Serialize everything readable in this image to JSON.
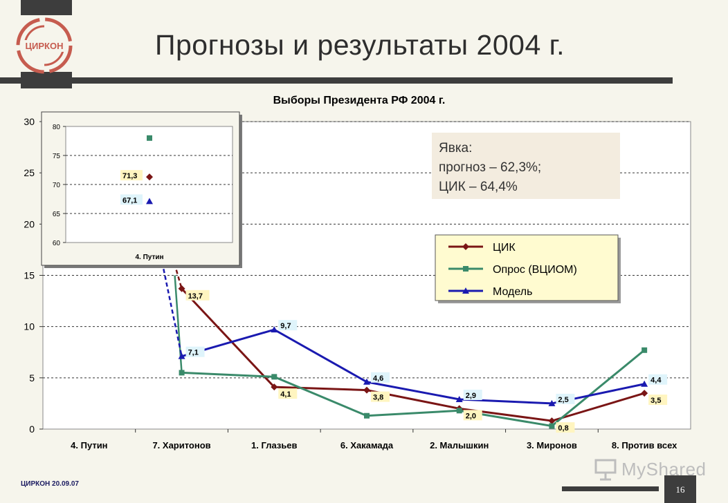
{
  "slide": {
    "logo_text": "ЦИРКОН",
    "title": "Прогнозы и результаты 2004 г.",
    "footer": "ЦИРКОН 20.09.07",
    "page_number": "16",
    "watermark": "MyShared"
  },
  "colors": {
    "cik": "#7a1515",
    "survey": "#3a8a6a",
    "model": "#1a1ab0",
    "logo": "#c65c4f",
    "turnout_bg": "#f3ecdf",
    "legend_bg": "#fffbd0"
  },
  "chart_data": {
    "type": "line",
    "title": "Выборы Президента РФ 2004 г.",
    "xlabel": "",
    "ylabel": "",
    "ylim": [
      0,
      30
    ],
    "yticks": [
      "0",
      "5",
      "10",
      "15",
      "20",
      "25",
      "30"
    ],
    "grid": true,
    "legend_placement": "right",
    "categories": [
      "4. Путин",
      "7. Харитонов",
      "1. Глазьев",
      "6. Хакамада",
      "2. Малышкин",
      "3. Миронов",
      "8. Против всех"
    ],
    "series": [
      {
        "name": "ЦИК",
        "marker": "diamond",
        "values": [
          null,
          13.7,
          4.1,
          3.8,
          2.0,
          0.8,
          3.5
        ],
        "labels": [
          null,
          "13,7",
          "4,1",
          "3,8",
          "2,0",
          "0,8",
          "3,5"
        ]
      },
      {
        "name": "Опрос (ВЦИОМ)",
        "marker": "square",
        "values": [
          null,
          5.5,
          5.1,
          1.3,
          1.8,
          0.3,
          7.7
        ],
        "labels": [
          null,
          null,
          null,
          null,
          null,
          null,
          null
        ]
      },
      {
        "name": "Модель",
        "marker": "triangle",
        "values": [
          null,
          7.1,
          9.7,
          4.6,
          2.9,
          2.5,
          4.4
        ],
        "labels": [
          null,
          "7,1",
          "9,7",
          "4,6",
          "2,9",
          "2,5",
          "4,4"
        ]
      }
    ],
    "inset": {
      "category": "4. Путин",
      "ylim": [
        60,
        80
      ],
      "yticks": [
        "60",
        "65",
        "70",
        "75",
        "80"
      ],
      "cik": {
        "value": 71.3,
        "label": "71,3"
      },
      "survey": {
        "value": 78.0
      },
      "model": {
        "value": 67.1,
        "label": "67,1"
      }
    },
    "annotation": {
      "lines": [
        "Явка:",
        "прогноз – 62,3%;",
        "ЦИК – 64,4%"
      ]
    }
  }
}
